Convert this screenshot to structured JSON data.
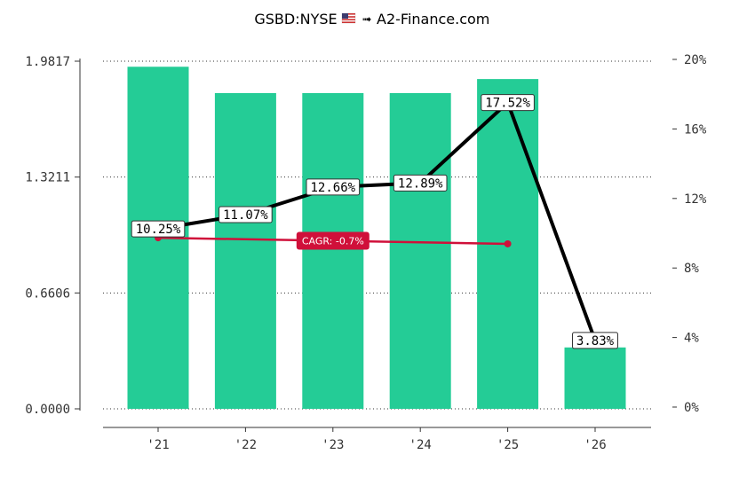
{
  "chart_data": {
    "type": "bar+line",
    "title": "GSBD:NYSE",
    "title_flag_icon": "us-flag-icon",
    "title_arrow_icon": "arrow-right-icon",
    "title_source": "A2-Finance.com",
    "categories": [
      "'21",
      "'22",
      "'23",
      "'24",
      "'25",
      "'26"
    ],
    "bars": {
      "axis": "left",
      "values": [
        1.95,
        1.8,
        1.8,
        1.8,
        1.88,
        0.35
      ],
      "color": "#24cc96"
    },
    "line": {
      "axis": "right",
      "values": [
        10.25,
        11.07,
        12.66,
        12.89,
        17.52,
        3.83
      ],
      "labels": [
        "10.25%",
        "11.07%",
        "12.66%",
        "12.89%",
        "17.52%",
        "3.83%"
      ],
      "color": "#000000"
    },
    "cagr": {
      "label": "CAGR: -0.7%",
      "from_category": "'21",
      "to_category": "'25",
      "start": 9.74,
      "end": 9.39,
      "color": "#d0103a"
    },
    "left_axis": {
      "ylim": [
        0,
        1.9817
      ],
      "ticks": [
        "0.0000",
        "0.6606",
        "1.3211",
        "1.9817"
      ],
      "tick_values": [
        0,
        0.6606,
        1.3211,
        1.9817
      ]
    },
    "right_axis": {
      "ylim": [
        0,
        20
      ],
      "ticks": [
        "0%",
        "4%",
        "8%",
        "12%",
        "16%",
        "20%"
      ],
      "tick_values": [
        0,
        4,
        8,
        12,
        16,
        20
      ]
    },
    "grid": "horizontal dotted"
  }
}
